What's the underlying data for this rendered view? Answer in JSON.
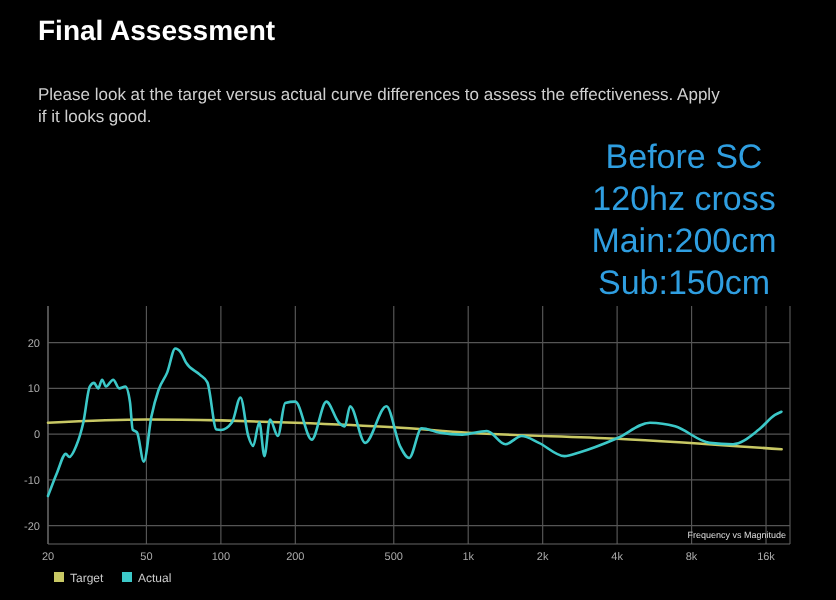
{
  "chart_data": {
    "type": "line",
    "title": "Final Assessment",
    "subtitle": "Please look at the target versus actual curve differences to assess the effectiveness. Apply if it looks good.",
    "annotations": [
      "Before SC\n120hz cross\nMain:200cm\nSub:150cm",
      "Frequency vs Magnitude"
    ],
    "xlim": [
      20,
      20000
    ],
    "log": "x",
    "xticks": [
      20,
      50,
      100,
      200,
      500,
      {
        "value": 1000,
        "label": "1k"
      },
      {
        "value": 2000,
        "label": "2k"
      },
      {
        "value": 4000,
        "label": "4k"
      },
      {
        "value": 8000,
        "label": "8k"
      },
      {
        "value": 16000,
        "label": "16k"
      }
    ],
    "ylim": [
      -24,
      28
    ],
    "yticks": [
      -20,
      -10,
      0,
      10,
      20
    ],
    "grid": true,
    "legend": "bottom left",
    "marker": "none",
    "line_style": "solid",
    "series": [
      {
        "name": "Target",
        "color": "#c8c864",
        "x": [
          20,
          50,
          100,
          200,
          500,
          1000,
          4000,
          18500
        ],
        "values": [
          2.5,
          3.2,
          3,
          2.5,
          1.5,
          0.3,
          -1,
          -3.3
        ]
      },
      {
        "name": "Actual",
        "color": "#3cc8c8",
        "x": [
          20,
          21.8,
          23.6,
          24.4,
          26,
          27.8,
          29.5,
          30.7,
          31.9,
          33.1,
          34.3,
          36.7,
          38.8,
          41.1,
          42.9,
          44,
          45.8,
          48.8,
          52.4,
          56,
          60.7,
          65.4,
          69,
          72.2,
          82.2,
          88.2,
          96,
          100,
          111,
          120,
          129,
          135,
          143,
          150,
          158,
          170,
          182,
          200,
          233,
          267,
          300,
          317,
          333,
          383,
          467,
          530,
          577,
          648,
          768,
          946,
          1190,
          1414,
          1645,
          1931,
          2450,
          2810,
          4000,
          5430,
          6860,
          9460,
          11770,
          14980,
          17390,
          18470
        ],
        "values": [
          -13.5,
          -8.3,
          -4.3,
          -5,
          -2.6,
          2.6,
          10.4,
          11.2,
          10,
          11.9,
          10.4,
          11.9,
          10,
          10.4,
          7,
          1,
          0.4,
          -6,
          3.9,
          9.7,
          13.5,
          18.7,
          17.8,
          15.7,
          13,
          11.3,
          1,
          0.9,
          2.6,
          8,
          -0.4,
          -2.6,
          2.6,
          -4.8,
          3.2,
          -0.4,
          6.8,
          7.1,
          -1.2,
          7.1,
          2.5,
          1.7,
          6.1,
          -1.9,
          6.1,
          -2.6,
          -5.2,
          1.3,
          0.3,
          -0.1,
          0.7,
          -2.2,
          -0.4,
          -1.9,
          -4.8,
          -4,
          -0.9,
          2.5,
          1.7,
          -1.9,
          -2.2,
          1,
          4.2,
          4.9
        ]
      }
    ]
  }
}
